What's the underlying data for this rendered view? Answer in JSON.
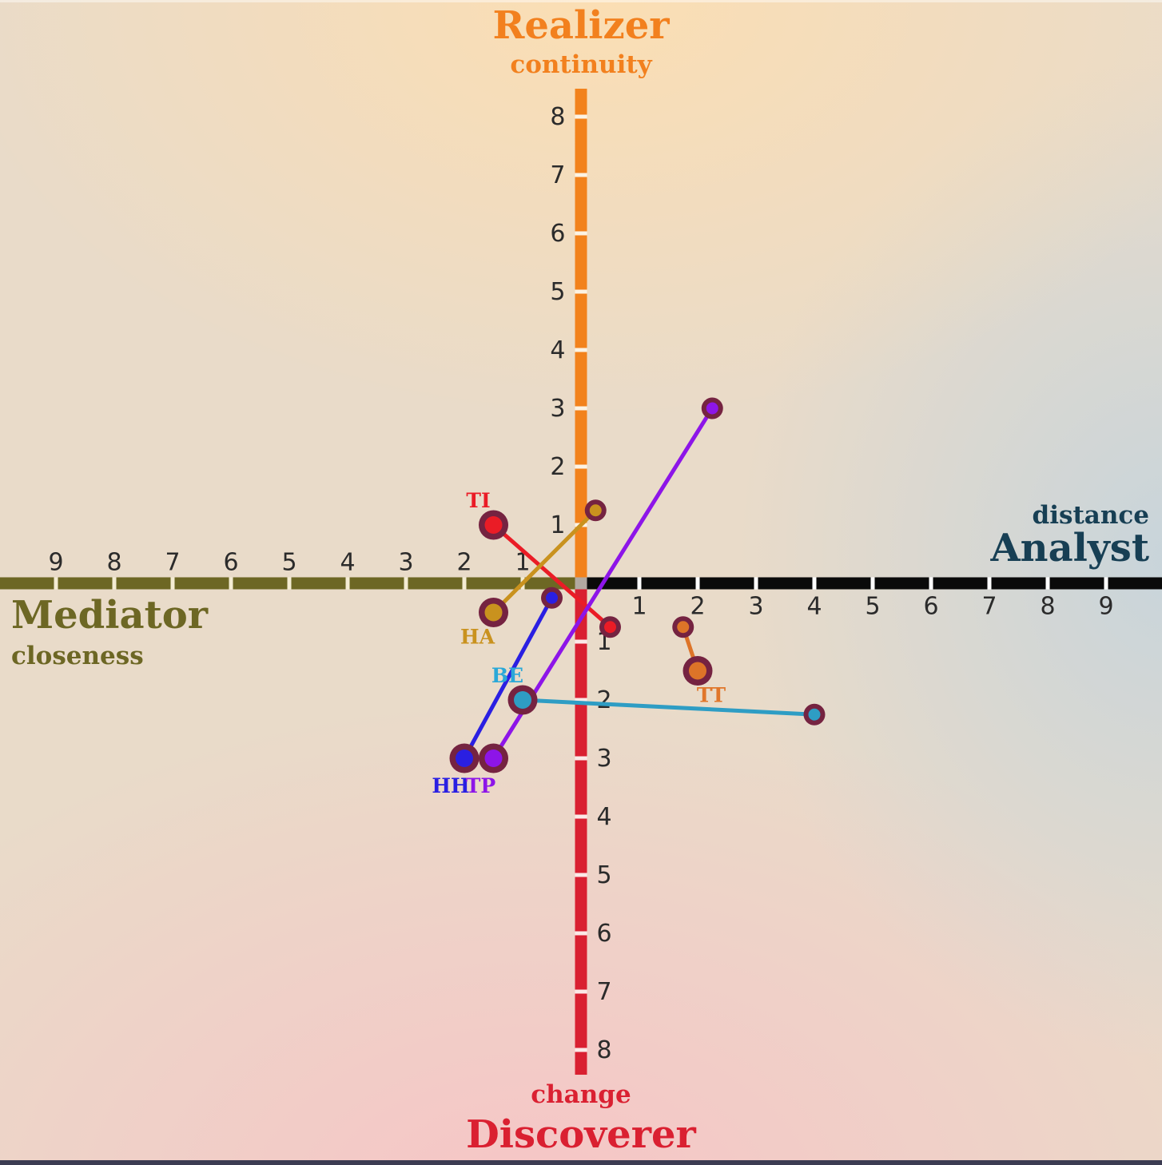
{
  "chart_data": {
    "type": "scatter",
    "description": "Quadrant map with two crossing axes; six entities each shown as a large start marker connected by a line to a small end marker.",
    "axes": {
      "up": {
        "title": "Realizer",
        "subtitle": "continuity",
        "color": "#f2801e",
        "bar_color": "#f2821c",
        "ticks": [
          1,
          2,
          3,
          4,
          5,
          6,
          7,
          8
        ]
      },
      "down": {
        "title": "Discoverer",
        "subtitle": "change",
        "color": "#da2031",
        "bar_color": "#d92031",
        "ticks": [
          1,
          2,
          3,
          4,
          5,
          6,
          7,
          8
        ]
      },
      "left": {
        "title": "Mediator",
        "subtitle": "closeness",
        "color": "#6d6724",
        "bar_color": "#6d6724",
        "ticks": [
          1,
          2,
          3,
          4,
          5,
          6,
          7,
          8,
          9
        ]
      },
      "right": {
        "title": "Analyst",
        "subtitle": "distance",
        "color": "#173f54",
        "bar_color": "#0a0a0a",
        "ticks": [
          1,
          2,
          3,
          4,
          5,
          6,
          7,
          8,
          9
        ]
      }
    },
    "xlim": [
      -9.5,
      9.5
    ],
    "ylim": [
      -8.5,
      8.5
    ],
    "grid": false,
    "tick_label_color": "#2b2b2b",
    "marker_ring_color": "#752341",
    "center_square_color": "#b2a9a1",
    "tick_gap_colors": {
      "left": "#f4ecd3",
      "right": "#ffffff",
      "up": "#fcf3e4",
      "down": "#fbe9e7"
    },
    "series": [
      {
        "label": "TI",
        "color": "#ea1c26",
        "label_color": "#ea1c26",
        "big": [
          -1.5,
          1
        ],
        "small": [
          0.5,
          -0.75
        ],
        "label_dx": -19,
        "label_dy": -22
      },
      {
        "label": "HA",
        "color": "#c9921e",
        "label_color": "#c9921e",
        "big": [
          -1.5,
          -0.5
        ],
        "small": [
          0.25,
          1.25
        ],
        "label_dx": -20,
        "label_dy": 39
      },
      {
        "label": "BE",
        "color": "#2e9dc4",
        "label_color": "#2aa8d8",
        "big": [
          -1,
          -2
        ],
        "small": [
          4,
          -2.25
        ],
        "label_dx": -19,
        "label_dy": -22
      },
      {
        "label": "HH",
        "color": "#2a1fe2",
        "label_color": "#2a1fe2",
        "big": [
          -2,
          -3
        ],
        "small": [
          -0.5,
          -0.25
        ],
        "label_dx": -17,
        "label_dy": 43
      },
      {
        "label": "TP",
        "color": "#8d15e8",
        "label_color": "#8d15e8",
        "big": [
          -1.5,
          -3
        ],
        "small": [
          2.25,
          3
        ],
        "label_dx": -16,
        "label_dy": 43
      },
      {
        "label": "TT",
        "color": "#dd7428",
        "label_color": "#e0762a",
        "big": [
          2,
          -1.5
        ],
        "small": [
          1.75,
          -0.75
        ],
        "label_dx": 17,
        "label_dy": 39
      }
    ]
  }
}
